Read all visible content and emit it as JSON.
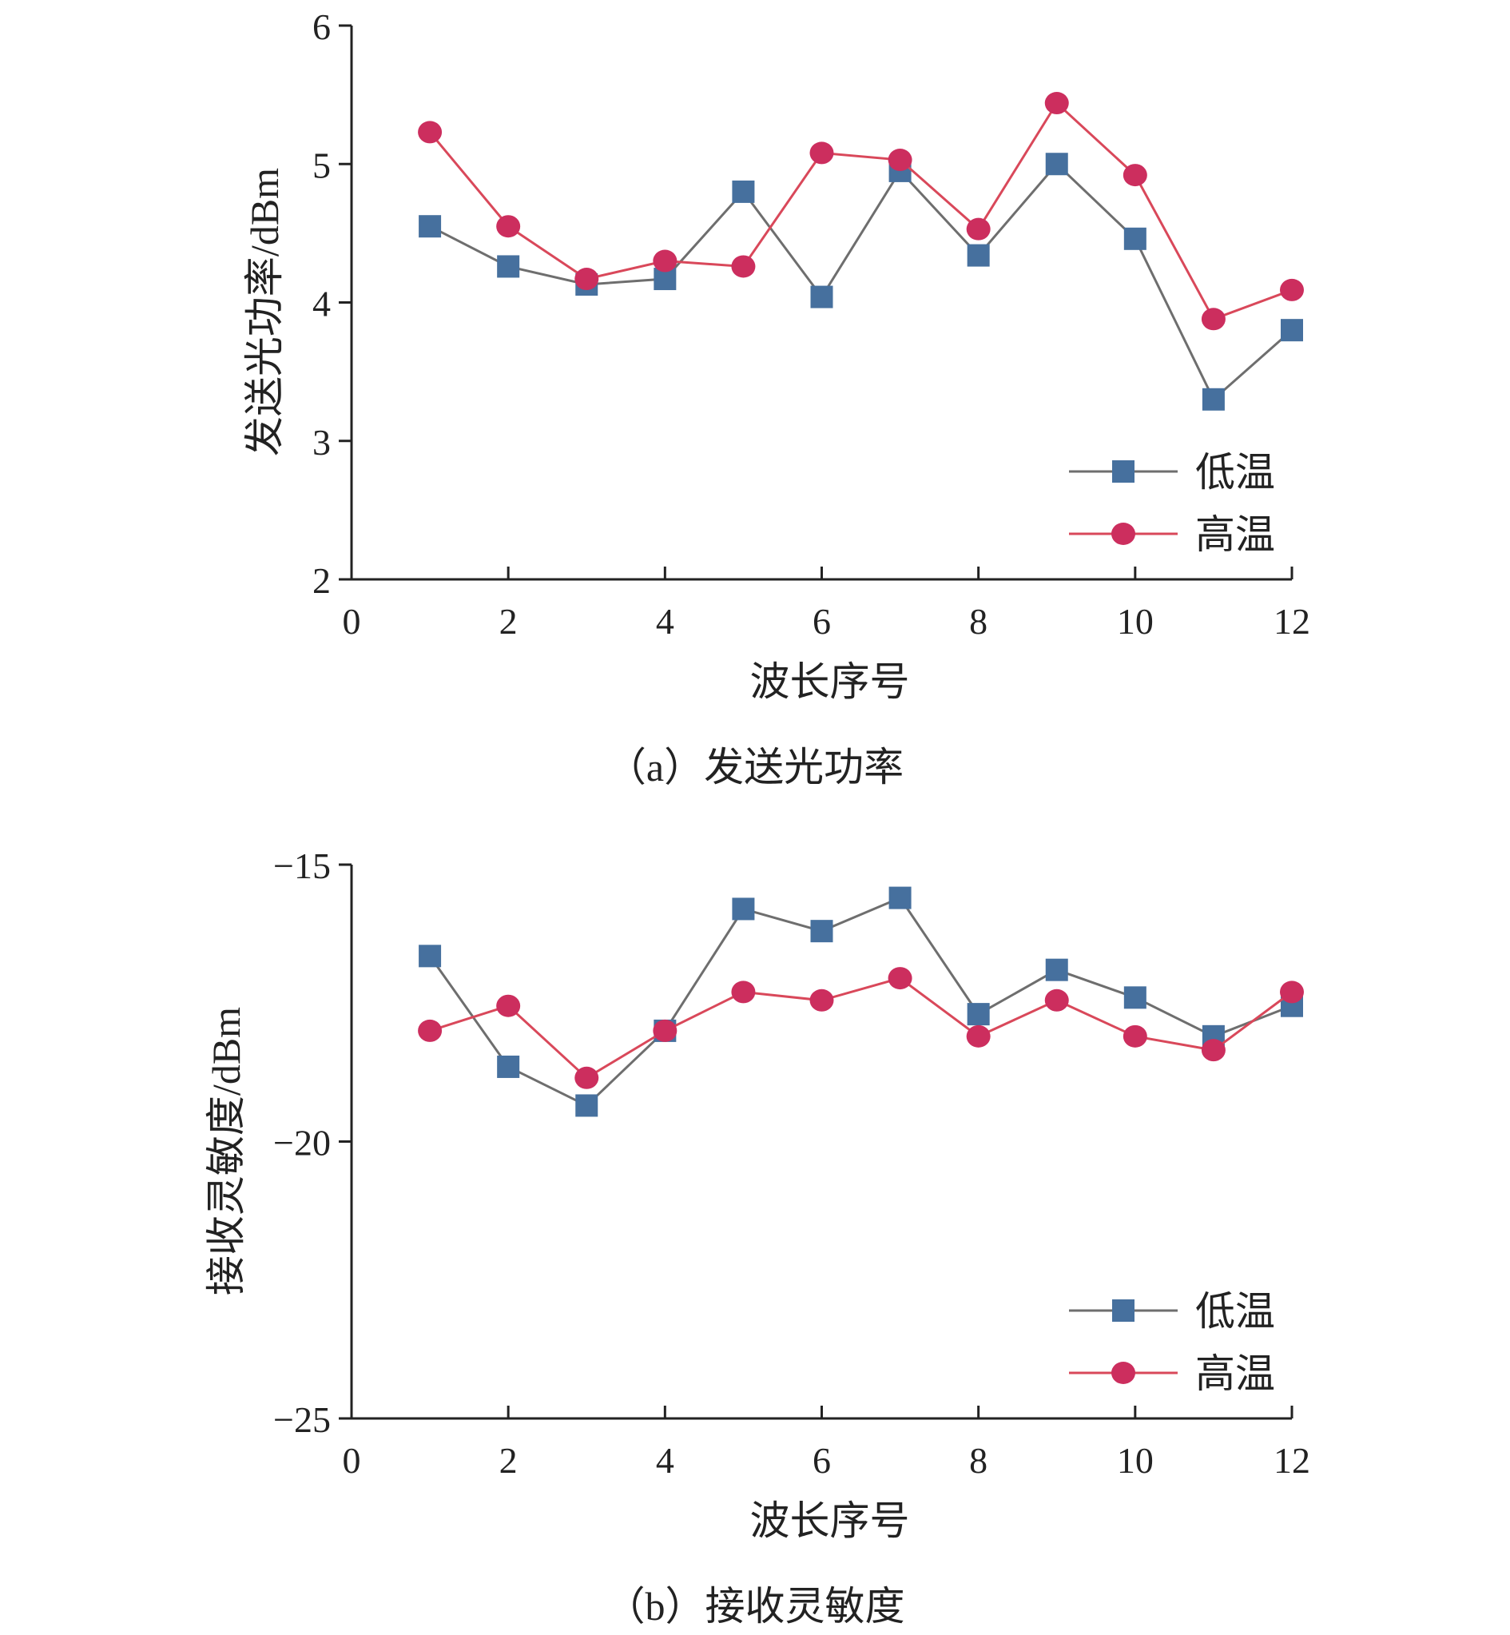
{
  "chart_data": [
    {
      "type": "line",
      "caption": "（a）发送光功率",
      "xlabel": "波长序号",
      "ylabel": "发送光功率/dBm",
      "xlim": [
        0,
        12
      ],
      "ylim": [
        2,
        6
      ],
      "xticks": [
        0,
        2,
        4,
        6,
        8,
        10,
        12
      ],
      "xtick_labels": [
        "0",
        "2",
        "4",
        "6",
        "8",
        "10",
        "12"
      ],
      "yticks": [
        2,
        3,
        4,
        5,
        6
      ],
      "ytick_labels": [
        "2",
        "3",
        "4",
        "5",
        "6"
      ],
      "legend_position": "bottom-right",
      "x": [
        1,
        2,
        3,
        4,
        5,
        6,
        7,
        8,
        9,
        10,
        11,
        12
      ],
      "series": [
        {
          "name": "低温",
          "color": "#46709e",
          "line_color": "#6e6e6e",
          "marker": "square",
          "values": [
            4.55,
            4.26,
            4.13,
            4.17,
            4.8,
            4.04,
            4.95,
            4.34,
            5.0,
            4.46,
            3.3,
            3.8
          ]
        },
        {
          "name": "高温",
          "color": "#cc2e5e",
          "line_color": "#d9485a",
          "marker": "circle",
          "values": [
            5.23,
            4.55,
            4.17,
            4.3,
            4.26,
            5.08,
            5.03,
            4.53,
            5.44,
            4.92,
            3.88,
            4.09
          ]
        }
      ]
    },
    {
      "type": "line",
      "caption": "（b）接收灵敏度",
      "xlabel": "波长序号",
      "ylabel": "接收灵敏度/dBm",
      "xlim": [
        0,
        12
      ],
      "ylim": [
        -25,
        -15
      ],
      "xticks": [
        0,
        2,
        4,
        6,
        8,
        10,
        12
      ],
      "xtick_labels": [
        "0",
        "2",
        "4",
        "6",
        "8",
        "10",
        "12"
      ],
      "yticks": [
        -25,
        -20,
        -15
      ],
      "ytick_labels": [
        "−25",
        "−20",
        "−15"
      ],
      "legend_position": "bottom-right",
      "x": [
        1,
        2,
        3,
        4,
        5,
        6,
        7,
        8,
        9,
        10,
        11,
        12
      ],
      "series": [
        {
          "name": "低温",
          "color": "#46709e",
          "line_color": "#6e6e6e",
          "marker": "square",
          "values": [
            -16.65,
            -18.65,
            -19.35,
            -18.0,
            -15.8,
            -16.2,
            -15.6,
            -17.7,
            -16.9,
            -17.4,
            -18.1,
            -17.55
          ]
        },
        {
          "name": "高温",
          "color": "#cc2e5e",
          "line_color": "#d9485a",
          "marker": "circle",
          "values": [
            -18.0,
            -17.55,
            -18.85,
            -18.0,
            -17.3,
            -17.45,
            -17.05,
            -18.1,
            -17.45,
            -18.1,
            -18.35,
            -17.3
          ]
        }
      ]
    }
  ]
}
